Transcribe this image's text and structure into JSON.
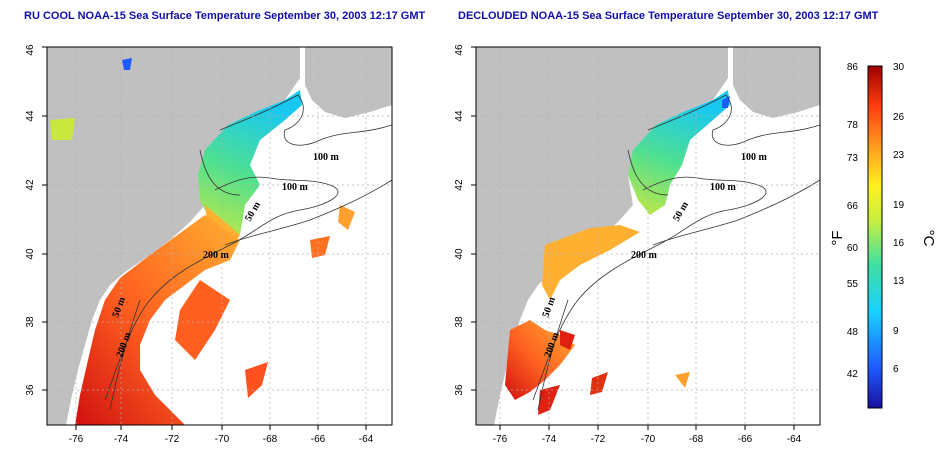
{
  "left_panel": {
    "title": "RU COOL NOAA-15 Sea Surface Temperature September 30, 2003 12:17 GMT"
  },
  "right_panel": {
    "title": "DECLOUDED NOAA-15 Sea Surface Temperature September 30, 2003 12:17 GMT"
  },
  "axes": {
    "lon_ticks": [
      "-76",
      "-74",
      "-72",
      "-70",
      "-68",
      "-66",
      "-64"
    ],
    "lat_ticks": [
      "36",
      "38",
      "40",
      "42",
      "44",
      "46"
    ]
  },
  "contour_labels": {
    "left": [
      "100 m",
      "100 m",
      "50 m",
      "200 m",
      "50 m",
      "200 m"
    ],
    "right": [
      "100 m",
      "100 m",
      "50 m",
      "200 m",
      "50 m",
      "200 m"
    ]
  },
  "colorbar": {
    "fahrenheit_unit": "°F",
    "celsius_unit": "°C",
    "fahrenheit_ticks": [
      "86",
      "78",
      "73",
      "66",
      "60",
      "55",
      "48",
      "42"
    ],
    "celsius_ticks": [
      "30",
      "26",
      "23",
      "19",
      "16",
      "13",
      "9",
      "6"
    ]
  },
  "colors": {
    "land": "#c0c0c0",
    "title": "#1010a8",
    "grid": "#b0b0b0"
  }
}
